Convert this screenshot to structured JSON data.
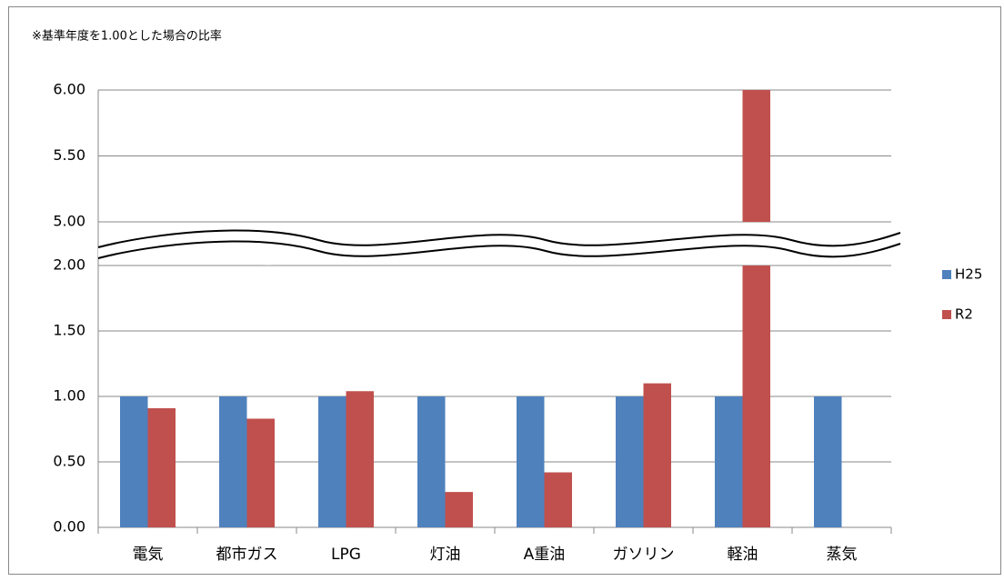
{
  "chart_data": {
    "type": "bar",
    "title": "※基準年度を1.00とした場合の比率",
    "categories": [
      "電気",
      "都市ガス",
      "LPG",
      "灯油",
      "A重油",
      "ガソリン",
      "軽油",
      "蒸気"
    ],
    "series": [
      {
        "name": "H25",
        "color": "#4f81bd",
        "values": [
          1.0,
          1.0,
          1.0,
          1.0,
          1.0,
          1.0,
          1.0,
          1.0
        ]
      },
      {
        "name": "R2",
        "color": "#c0504d",
        "values": [
          0.91,
          0.83,
          1.04,
          0.27,
          0.42,
          1.1,
          6.0,
          0
        ]
      }
    ],
    "ylim": [
      0,
      6
    ],
    "axis_break": [
      2,
      5
    ],
    "yticks": [
      {
        "value": 0,
        "label": "0.00"
      },
      {
        "value": 0.5,
        "label": "0.50"
      },
      {
        "value": 1,
        "label": "1.00"
      },
      {
        "value": 1.5,
        "label": "1.50"
      },
      {
        "value": 2,
        "label": "2.00"
      },
      {
        "value": 5,
        "label": "5.00"
      },
      {
        "value": 5.5,
        "label": "5.50"
      },
      {
        "value": 6,
        "label": "6.00"
      }
    ],
    "grid": true,
    "legend": "right"
  }
}
